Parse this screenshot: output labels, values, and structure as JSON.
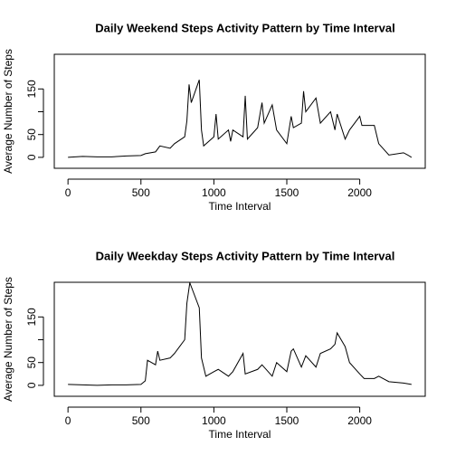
{
  "chart_data": [
    {
      "type": "line",
      "title": "Daily Weekend Steps Activity Pattern by Time Interval",
      "x_label": "Time Interval",
      "y_label": "Average Number of Steps",
      "xlim": [
        -94,
        2449
      ],
      "ylim": [
        -24,
        226
      ],
      "xticks": [
        0,
        500,
        1000,
        1500,
        2000
      ],
      "yticks": [
        0,
        50,
        {
          "value": 100,
          "label": null
        },
        150
      ],
      "series": [
        {
          "name": null,
          "color": "#000000",
          "x": [
            0,
            100,
            200,
            300,
            400,
            500,
            530,
            600,
            630,
            700,
            730,
            800,
            815,
            830,
            845,
            900,
            915,
            930,
            1000,
            1015,
            1030,
            1100,
            1115,
            1130,
            1200,
            1215,
            1230,
            1300,
            1330,
            1345,
            1400,
            1430,
            1500,
            1530,
            1545,
            1600,
            1615,
            1630,
            1700,
            1730,
            1800,
            1830,
            1845,
            1900,
            1930,
            2000,
            2015,
            2100,
            2130,
            2200,
            2300,
            2330,
            2355
          ],
          "values": [
            0,
            2,
            1,
            1,
            3,
            4,
            8,
            12,
            25,
            20,
            30,
            45,
            80,
            160,
            120,
            170,
            60,
            25,
            45,
            95,
            40,
            60,
            35,
            60,
            45,
            135,
            40,
            65,
            120,
            75,
            115,
            60,
            30,
            90,
            65,
            75,
            145,
            100,
            130,
            75,
            100,
            60,
            95,
            40,
            60,
            90,
            70,
            70,
            30,
            5,
            10,
            5,
            0
          ]
        }
      ]
    },
    {
      "type": "line",
      "title": "Daily Weekday Steps Activity Pattern by Time Interval",
      "x_label": "Time Interval",
      "y_label": "Average Number of Steps",
      "xlim": [
        -94,
        2449
      ],
      "ylim": [
        -24,
        226
      ],
      "xticks": [
        0,
        500,
        1000,
        1500,
        2000
      ],
      "yticks": [
        0,
        50,
        {
          "value": 100,
          "label": null
        },
        150
      ],
      "series": [
        {
          "name": null,
          "color": "#000000",
          "x": [
            0,
            100,
            200,
            300,
            400,
            500,
            530,
            545,
            600,
            615,
            630,
            700,
            730,
            800,
            815,
            835,
            900,
            915,
            930,
            945,
            1000,
            1030,
            1100,
            1130,
            1200,
            1215,
            1300,
            1330,
            1400,
            1430,
            1500,
            1530,
            1545,
            1600,
            1630,
            1700,
            1730,
            1800,
            1830,
            1845,
            1900,
            1930,
            2000,
            2030,
            2100,
            2130,
            2200,
            2300,
            2355
          ],
          "values": [
            2,
            1,
            0,
            1,
            1,
            2,
            10,
            55,
            45,
            75,
            55,
            60,
            70,
            100,
            180,
            225,
            170,
            60,
            40,
            20,
            30,
            35,
            20,
            30,
            70,
            25,
            35,
            45,
            20,
            50,
            30,
            75,
            80,
            40,
            65,
            40,
            70,
            80,
            90,
            115,
            85,
            50,
            25,
            15,
            15,
            20,
            8,
            5,
            2
          ]
        }
      ]
    }
  ]
}
